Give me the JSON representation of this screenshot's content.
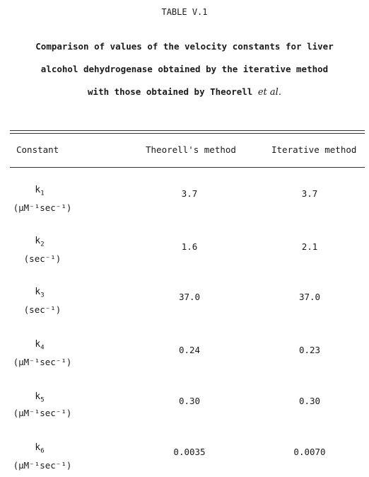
{
  "title": "TABLE V.1",
  "caption": {
    "line1": "Comparison of values of the velocity constants for liver",
    "line2": "alcohol dehydrogenase obtained by the iterative method",
    "line3_prefix": "with those obtained by Theorell ",
    "line3_italic": "et al.",
    "line3_suffix": ""
  },
  "headers": {
    "constant": "Constant",
    "theorell": "Theorell's method",
    "iterative": "Iterative method"
  },
  "rows": [
    {
      "symbol": "k",
      "subscript": "1",
      "unit": "(μM⁻¹sec⁻¹)",
      "theorell": "3.7",
      "iterative": "3.7"
    },
    {
      "symbol": "k",
      "subscript": "2",
      "unit": "(sec⁻¹)",
      "theorell": "1.6",
      "iterative": "2.1"
    },
    {
      "symbol": "k",
      "subscript": "3",
      "unit": "(sec⁻¹)",
      "theorell": "37.0",
      "iterative": "37.0"
    },
    {
      "symbol": "k",
      "subscript": "4",
      "unit": "(μM⁻¹sec⁻¹)",
      "theorell": "0.24",
      "iterative": "0.23"
    },
    {
      "symbol": "k",
      "subscript": "5",
      "unit": "(μM⁻¹sec⁻¹)",
      "theorell": "0.30",
      "iterative": "0.30"
    },
    {
      "symbol": "k",
      "subscript": "6",
      "unit": "(μM⁻¹sec⁻¹)",
      "theorell": "0.0035",
      "iterative": "0.0070"
    }
  ]
}
